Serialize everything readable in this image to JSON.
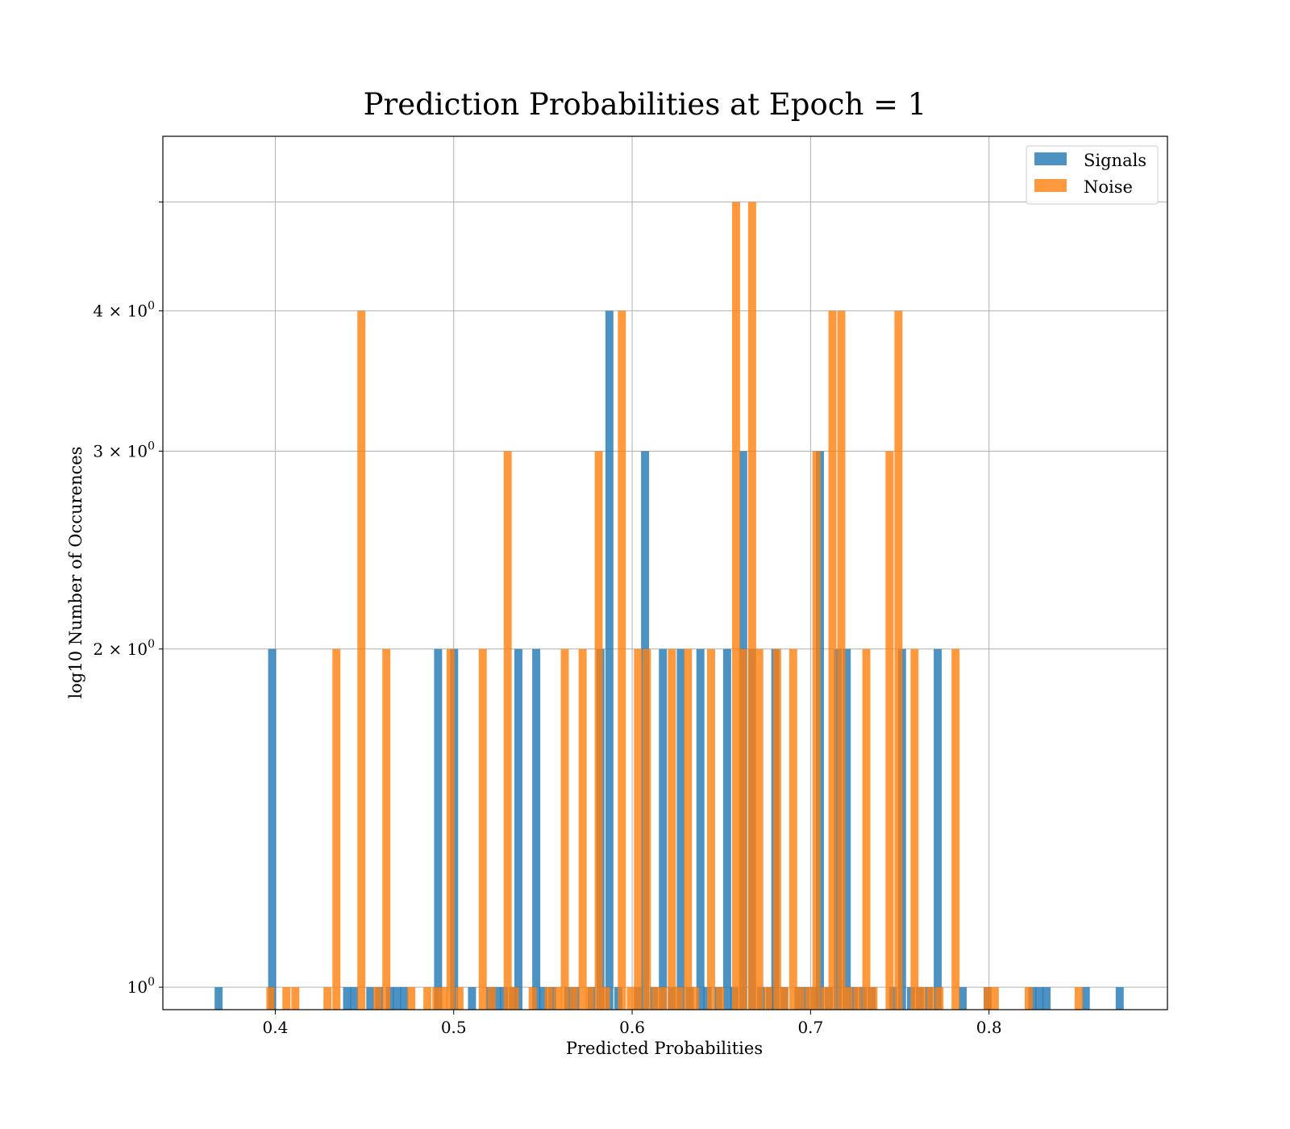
{
  "chart_data": {
    "type": "bar",
    "title": "Prediction Probabilities at Epoch = 1",
    "xlabel": "Predicted Probabilities",
    "ylabel": "log10 Number of Occurences",
    "xlim": [
      0.337,
      0.9
    ],
    "ylim": [
      0.955,
      5.72
    ],
    "yscale": "log",
    "grid": true,
    "legend_position": "top-right",
    "x_ticks": [
      {
        "value": 0.4,
        "label": "0.4"
      },
      {
        "value": 0.5,
        "label": "0.5"
      },
      {
        "value": 0.6,
        "label": "0.6"
      },
      {
        "value": 0.7,
        "label": "0.7"
      },
      {
        "value": 0.8,
        "label": "0.8"
      }
    ],
    "y_ticks": [
      {
        "value": 1,
        "base": "10",
        "exp": "0"
      },
      {
        "value": 2,
        "base": "2 × 10",
        "exp": "0"
      },
      {
        "value": 3,
        "base": "3 × 10",
        "exp": "0"
      },
      {
        "value": 4,
        "base": "4 × 10",
        "exp": "0"
      },
      {
        "value": 5,
        "base": "",
        "exp": ""
      }
    ],
    "series": [
      {
        "name": "Signals",
        "color": "#1f77b4",
        "bin_width": 0.0045,
        "bins": [
          [
            0.366,
            1
          ],
          [
            0.396,
            2
          ],
          [
            0.438,
            1
          ],
          [
            0.442,
            1
          ],
          [
            0.451,
            1
          ],
          [
            0.456,
            1
          ],
          [
            0.462,
            1
          ],
          [
            0.466,
            1
          ],
          [
            0.47,
            1
          ],
          [
            0.489,
            2
          ],
          [
            0.498,
            2
          ],
          [
            0.508,
            1
          ],
          [
            0.518,
            1
          ],
          [
            0.522,
            1
          ],
          [
            0.526,
            1
          ],
          [
            0.531,
            1
          ],
          [
            0.534,
            2
          ],
          [
            0.544,
            2
          ],
          [
            0.548,
            1
          ],
          [
            0.553,
            1
          ],
          [
            0.562,
            1
          ],
          [
            0.566,
            1
          ],
          [
            0.575,
            1
          ],
          [
            0.58,
            2
          ],
          [
            0.585,
            4
          ],
          [
            0.59,
            1
          ],
          [
            0.601,
            1
          ],
          [
            0.605,
            3
          ],
          [
            0.61,
            1
          ],
          [
            0.615,
            2
          ],
          [
            0.62,
            1
          ],
          [
            0.625,
            2
          ],
          [
            0.63,
            1
          ],
          [
            0.636,
            2
          ],
          [
            0.64,
            1
          ],
          [
            0.646,
            1
          ],
          [
            0.651,
            2
          ],
          [
            0.655,
            1
          ],
          [
            0.66,
            3
          ],
          [
            0.665,
            2
          ],
          [
            0.67,
            1
          ],
          [
            0.675,
            1
          ],
          [
            0.678,
            2
          ],
          [
            0.683,
            1
          ],
          [
            0.691,
            1
          ],
          [
            0.695,
            1
          ],
          [
            0.7,
            1
          ],
          [
            0.703,
            3
          ],
          [
            0.708,
            1
          ],
          [
            0.713,
            2
          ],
          [
            0.718,
            2
          ],
          [
            0.722,
            1
          ],
          [
            0.727,
            1
          ],
          [
            0.732,
            1
          ],
          [
            0.744,
            1
          ],
          [
            0.749,
            2
          ],
          [
            0.754,
            1
          ],
          [
            0.759,
            1
          ],
          [
            0.764,
            1
          ],
          [
            0.769,
            2
          ],
          [
            0.783,
            1
          ],
          [
            0.797,
            1
          ],
          [
            0.822,
            1
          ],
          [
            0.826,
            1
          ],
          [
            0.83,
            1
          ],
          [
            0.852,
            1
          ],
          [
            0.871,
            1
          ]
        ]
      },
      {
        "name": "Noise",
        "color": "#ff7f0e",
        "bin_width": 0.0045,
        "bins": [
          [
            0.395,
            1
          ],
          [
            0.404,
            1
          ],
          [
            0.409,
            1
          ],
          [
            0.427,
            1
          ],
          [
            0.432,
            2
          ],
          [
            0.446,
            4
          ],
          [
            0.455,
            1
          ],
          [
            0.46,
            2
          ],
          [
            0.474,
            1
          ],
          [
            0.483,
            1
          ],
          [
            0.488,
            1
          ],
          [
            0.492,
            1
          ],
          [
            0.496,
            2
          ],
          [
            0.501,
            1
          ],
          [
            0.514,
            2
          ],
          [
            0.519,
            1
          ],
          [
            0.528,
            3
          ],
          [
            0.532,
            1
          ],
          [
            0.542,
            1
          ],
          [
            0.551,
            1
          ],
          [
            0.556,
            1
          ],
          [
            0.56,
            2
          ],
          [
            0.565,
            1
          ],
          [
            0.57,
            2
          ],
          [
            0.574,
            1
          ],
          [
            0.579,
            3
          ],
          [
            0.583,
            1
          ],
          [
            0.592,
            4
          ],
          [
            0.597,
            1
          ],
          [
            0.601,
            2
          ],
          [
            0.606,
            2
          ],
          [
            0.611,
            1
          ],
          [
            0.615,
            1
          ],
          [
            0.62,
            2
          ],
          [
            0.624,
            1
          ],
          [
            0.629,
            2
          ],
          [
            0.633,
            1
          ],
          [
            0.642,
            2
          ],
          [
            0.647,
            1
          ],
          [
            0.656,
            5
          ],
          [
            0.66,
            2
          ],
          [
            0.665,
            5
          ],
          [
            0.669,
            2
          ],
          [
            0.674,
            1
          ],
          [
            0.679,
            2
          ],
          [
            0.683,
            1
          ],
          [
            0.688,
            2
          ],
          [
            0.692,
            1
          ],
          [
            0.697,
            1
          ],
          [
            0.701,
            3
          ],
          [
            0.706,
            1
          ],
          [
            0.71,
            4
          ],
          [
            0.715,
            4
          ],
          [
            0.719,
            1
          ],
          [
            0.724,
            1
          ],
          [
            0.729,
            2
          ],
          [
            0.733,
            1
          ],
          [
            0.742,
            3
          ],
          [
            0.747,
            4
          ],
          [
            0.756,
            2
          ],
          [
            0.76,
            1
          ],
          [
            0.765,
            1
          ],
          [
            0.77,
            1
          ],
          [
            0.779,
            2
          ],
          [
            0.797,
            1
          ],
          [
            0.801,
            1
          ],
          [
            0.82,
            1
          ],
          [
            0.848,
            1
          ]
        ]
      }
    ]
  }
}
